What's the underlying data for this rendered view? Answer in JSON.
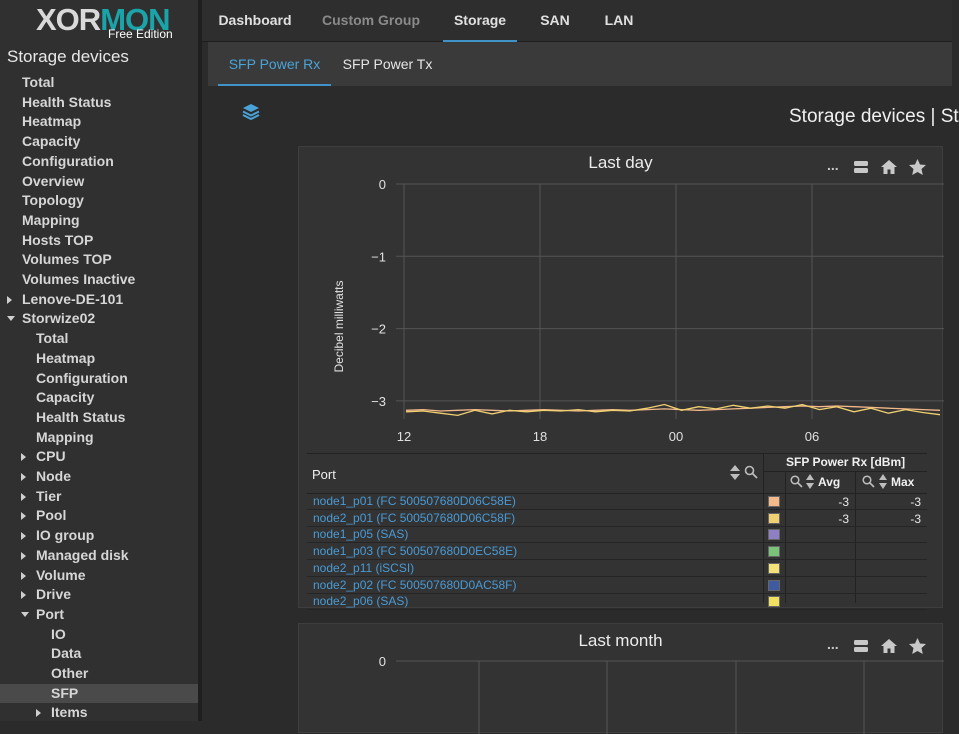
{
  "logo": {
    "word_white": "XOR",
    "word_teal": "MON",
    "edition": "Free Edition"
  },
  "sidebar": {
    "title": "Storage devices",
    "items": [
      {
        "label": "Total",
        "indent": 0,
        "caret": "none"
      },
      {
        "label": "Health Status",
        "indent": 0,
        "caret": "none"
      },
      {
        "label": "Heatmap",
        "indent": 0,
        "caret": "none"
      },
      {
        "label": "Capacity",
        "indent": 0,
        "caret": "none"
      },
      {
        "label": "Configuration",
        "indent": 0,
        "caret": "none"
      },
      {
        "label": "Overview",
        "indent": 0,
        "caret": "none"
      },
      {
        "label": "Topology",
        "indent": 0,
        "caret": "none"
      },
      {
        "label": "Mapping",
        "indent": 0,
        "caret": "none"
      },
      {
        "label": "Hosts TOP",
        "indent": 0,
        "caret": "none"
      },
      {
        "label": "Volumes TOP",
        "indent": 0,
        "caret": "none"
      },
      {
        "label": "Volumes Inactive",
        "indent": 0,
        "caret": "none"
      },
      {
        "label": "Lenove-DE-101",
        "indent": 0,
        "caret": "right"
      },
      {
        "label": "Storwize02",
        "indent": 0,
        "caret": "down"
      },
      {
        "label": "Total",
        "indent": 1,
        "caret": "none"
      },
      {
        "label": "Heatmap",
        "indent": 1,
        "caret": "none"
      },
      {
        "label": "Configuration",
        "indent": 1,
        "caret": "none"
      },
      {
        "label": "Capacity",
        "indent": 1,
        "caret": "none"
      },
      {
        "label": "Health Status",
        "indent": 1,
        "caret": "none"
      },
      {
        "label": "Mapping",
        "indent": 1,
        "caret": "none"
      },
      {
        "label": "CPU",
        "indent": 1,
        "caret": "right"
      },
      {
        "label": "Node",
        "indent": 1,
        "caret": "right"
      },
      {
        "label": "Tier",
        "indent": 1,
        "caret": "right"
      },
      {
        "label": "Pool",
        "indent": 1,
        "caret": "right"
      },
      {
        "label": "IO group",
        "indent": 1,
        "caret": "right"
      },
      {
        "label": "Managed disk",
        "indent": 1,
        "caret": "right"
      },
      {
        "label": "Volume",
        "indent": 1,
        "caret": "right"
      },
      {
        "label": "Drive",
        "indent": 1,
        "caret": "right"
      },
      {
        "label": "Port",
        "indent": 1,
        "caret": "down"
      },
      {
        "label": "IO",
        "indent": 2,
        "caret": "none"
      },
      {
        "label": "Data",
        "indent": 2,
        "caret": "none"
      },
      {
        "label": "Other",
        "indent": 2,
        "caret": "none"
      },
      {
        "label": "SFP",
        "indent": 2,
        "caret": "none",
        "active": true
      },
      {
        "label": "Items",
        "indent": 2,
        "caret": "right"
      }
    ]
  },
  "topnav": {
    "tabs": [
      {
        "label": "Dashboard",
        "state": "normal"
      },
      {
        "label": "Custom Group",
        "state": "dim"
      },
      {
        "label": "Storage",
        "state": "active"
      },
      {
        "label": "SAN",
        "state": "normal"
      },
      {
        "label": "LAN",
        "state": "normal"
      }
    ]
  },
  "subtabs": [
    {
      "label": "SFP Power Rx",
      "active": true
    },
    {
      "label": "SFP Power Tx",
      "active": false
    }
  ],
  "heading": {
    "text": "Storage devices | St"
  },
  "toolbar": {
    "more": "...",
    "icons": [
      "list-icon",
      "home-icon",
      "star-icon"
    ]
  },
  "panel_day": {
    "title": "Last day"
  },
  "panel_month": {
    "title": "Last month"
  },
  "chart_data": [
    {
      "type": "line",
      "title": "Last day",
      "ylabel": "Decibel milliwatts",
      "xlabel": "",
      "ylim": [
        -3.25,
        0
      ],
      "yticks": [
        "0",
        "−1",
        "−2",
        "−3"
      ],
      "ytick_values": [
        0,
        -1,
        -2,
        -3
      ],
      "xticks": [
        "12",
        "18",
        "00",
        "06"
      ],
      "grid": true,
      "series": [
        {
          "color": "#f4b98a",
          "values": [
            -3.13,
            -3.12,
            -3.14,
            -3.13,
            -3.12,
            -3.13,
            -3.14,
            -3.13,
            -3.12,
            -3.13,
            -3.14,
            -3.13,
            -3.12,
            -3.13,
            -3.12,
            -3.11,
            -3.12,
            -3.13,
            -3.12,
            -3.11,
            -3.1,
            -3.09,
            -3.08,
            -3.07,
            -3.08,
            -3.07,
            -3.08,
            -3.09,
            -3.1,
            -3.11,
            -3.12,
            -3.13
          ]
        },
        {
          "color": "#f0d070",
          "values": [
            -3.15,
            -3.14,
            -3.17,
            -3.2,
            -3.13,
            -3.18,
            -3.13,
            -3.15,
            -3.13,
            -3.14,
            -3.12,
            -3.15,
            -3.13,
            -3.14,
            -3.1,
            -3.05,
            -3.13,
            -3.08,
            -3.11,
            -3.06,
            -3.1,
            -3.07,
            -3.1,
            -3.05,
            -3.12,
            -3.08,
            -3.15,
            -3.1,
            -3.17,
            -3.12,
            -3.16,
            -3.19
          ]
        }
      ]
    },
    {
      "type": "line",
      "title": "Last month",
      "ylim": [
        -3.25,
        0
      ],
      "yticks": [
        "0"
      ],
      "ytick_values": [
        0
      ],
      "grid": true,
      "series": []
    }
  ],
  "table": {
    "col_port": "Port",
    "col_metric": "SFP Power Rx [dBm]",
    "col_avg": "Avg",
    "col_max": "Max",
    "rows": [
      {
        "port": "node1_p01 (FC 500507680D06C58E)",
        "color": "#f4b98a",
        "avg": "-3",
        "max": "-3"
      },
      {
        "port": "node2_p01 (FC 500507680D06C58F)",
        "color": "#f0d070",
        "avg": "-3",
        "max": "-3"
      },
      {
        "port": "node1_p05 (SAS)",
        "color": "#8f7fc4",
        "avg": "",
        "max": ""
      },
      {
        "port": "node1_p03 (FC 500507680D0EC58E)",
        "color": "#7ac47a",
        "avg": "",
        "max": ""
      },
      {
        "port": "node2_p11 (iSCSI)",
        "color": "#f3e27a",
        "avg": "",
        "max": ""
      },
      {
        "port": "node2_p02 (FC 500507680D0AC58F)",
        "color": "#3f5aa0",
        "avg": "",
        "max": ""
      },
      {
        "port": "node2_p06 (SAS)",
        "color": "#f0e060",
        "avg": "",
        "max": ""
      }
    ]
  }
}
